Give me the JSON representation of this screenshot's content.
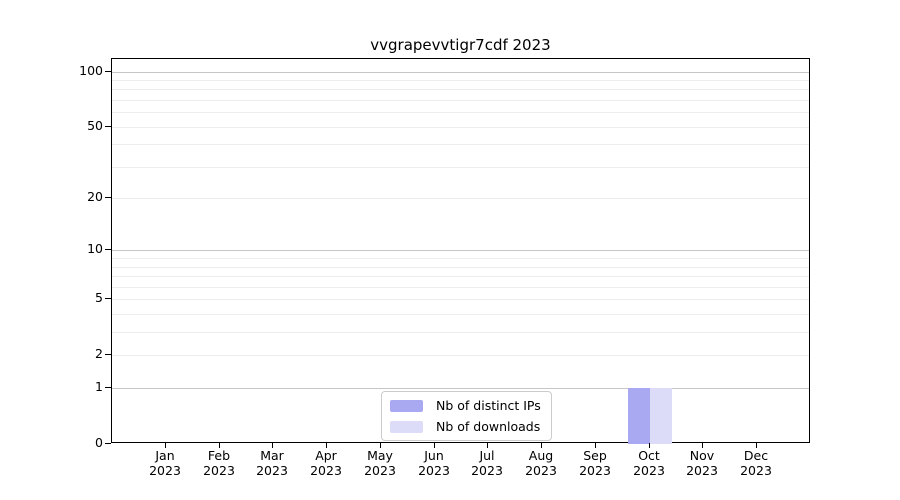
{
  "title": "vvgrapevvtigr7cdf 2023",
  "chart_data": {
    "type": "bar",
    "title": "vvgrapevvtigr7cdf 2023",
    "categories": [
      "Jan 2023",
      "Feb 2023",
      "Mar 2023",
      "Apr 2023",
      "May 2023",
      "Jun 2023",
      "Jul 2023",
      "Aug 2023",
      "Sep 2023",
      "Oct 2023",
      "Nov 2023",
      "Dec 2023"
    ],
    "series": [
      {
        "name": "Nb of distinct IPs",
        "color": "#a9a9f2",
        "values": [
          0,
          0,
          0,
          0,
          0,
          0,
          0,
          0,
          0,
          1,
          0,
          0
        ]
      },
      {
        "name": "Nb of downloads",
        "color": "#dcdcf8",
        "values": [
          0,
          0,
          0,
          0,
          0,
          0,
          0,
          0,
          0,
          1,
          0,
          0
        ]
      }
    ],
    "xlabel": "",
    "ylabel": "",
    "yscale": "log1p",
    "ylim": [
      0,
      117
    ],
    "yticks": [
      0,
      1,
      2,
      5,
      10,
      20,
      50,
      100
    ],
    "grid": "horizontal",
    "major_grid_values": [
      1,
      10,
      100
    ],
    "minor_grid_values": [
      2,
      3,
      4,
      5,
      6,
      7,
      8,
      9,
      20,
      30,
      40,
      50,
      60,
      70,
      80,
      90
    ],
    "legend_position": "lower center inside"
  },
  "legend": {
    "items": [
      {
        "label": "Nb of distinct IPs",
        "color": "#a9a9f2"
      },
      {
        "label": "Nb of downloads",
        "color": "#dcdcf8"
      }
    ]
  },
  "colors": {
    "background": "#ffffff",
    "spine": "#000000",
    "text": "#000000",
    "grid_minor": "#ededed",
    "grid_major": "#c6c6c6",
    "legend_border": "#cccccc"
  }
}
